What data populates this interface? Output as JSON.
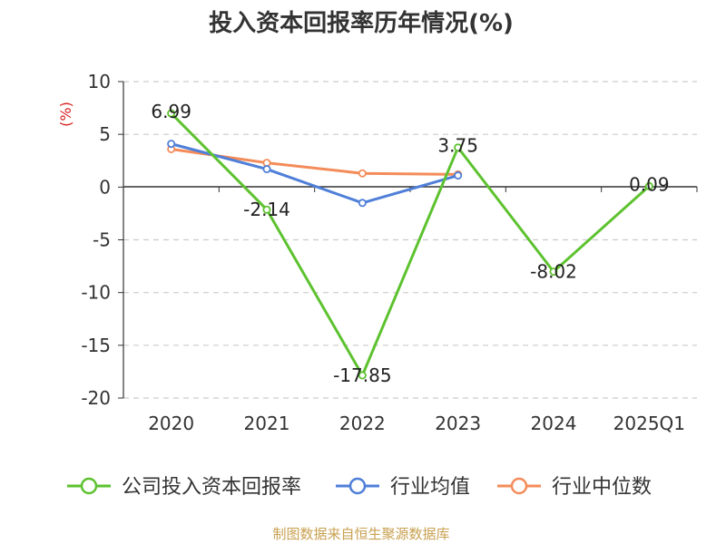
{
  "chart_data": {
    "type": "line",
    "title": "投入资本回报率历年情况(%)",
    "ylabel": "(%)",
    "xlabel": "",
    "categories": [
      "2020",
      "2021",
      "2022",
      "2023",
      "2024",
      "2025Q1"
    ],
    "ylim": [
      -20,
      10
    ],
    "yticks": [
      10,
      5,
      0,
      -5,
      -10,
      -15,
      -20
    ],
    "grid": true,
    "legend_position": "bottom",
    "series": [
      {
        "name": "公司投入资本回报率",
        "color": "#5dc22f",
        "values": [
          6.99,
          -2.14,
          -17.85,
          3.75,
          -8.02,
          0.09
        ],
        "labels": [
          "6.99",
          "-2.14",
          "-17.85",
          "3.75",
          "-8.02",
          "0.09"
        ]
      },
      {
        "name": "行业均值",
        "color": "#4f7fd8",
        "values": [
          4.1,
          1.7,
          -1.5,
          1.1,
          null,
          null
        ]
      },
      {
        "name": "行业中位数",
        "color": "#f48c5a",
        "values": [
          3.6,
          2.3,
          1.3,
          1.2,
          null,
          null
        ]
      }
    ]
  },
  "source": "制图数据来自恒生聚源数据库"
}
